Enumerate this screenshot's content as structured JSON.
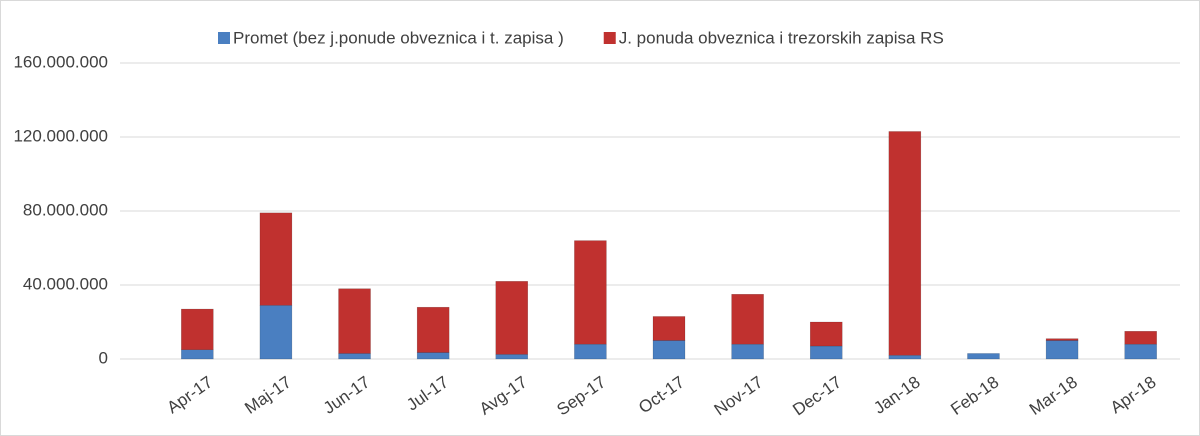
{
  "chart_data": {
    "type": "stacked_bar",
    "categories": [
      "Apr-17",
      "Maj-17",
      "Jun-17",
      "Jul-17",
      "Avg-17",
      "Sep-17",
      "Oct-17",
      "Nov-17",
      "Dec-17",
      "Jan-18",
      "Feb-18",
      "Mar-18",
      "Apr-18"
    ],
    "series": [
      {
        "name": "Promet (bez j.ponude obveznica i t. zapisa )",
        "color": "#4a7fc1",
        "values": [
          5000000,
          29000000,
          3000000,
          3500000,
          2500000,
          8000000,
          10000000,
          8000000,
          7000000,
          2000000,
          3000000,
          10000000,
          8000000
        ]
      },
      {
        "name": "J. ponuda obveznica i trezorskih zapisa RS",
        "color": "#c0312f",
        "values": [
          22000000,
          50000000,
          35000000,
          24500000,
          39500000,
          56000000,
          13000000,
          27000000,
          13000000,
          121000000,
          0,
          1000000,
          7000000
        ]
      }
    ],
    "ylim": [
      0,
      160000000
    ],
    "yticks": [
      0,
      {
        "value": 40000000,
        "label": "40.000.000"
      },
      {
        "value": 80000000,
        "label": "80.000.000"
      },
      {
        "value": 120000000,
        "label": "120.000.000"
      },
      {
        "value": 160000000,
        "label": "160.000.000"
      }
    ],
    "grid": true,
    "legend": "top"
  }
}
